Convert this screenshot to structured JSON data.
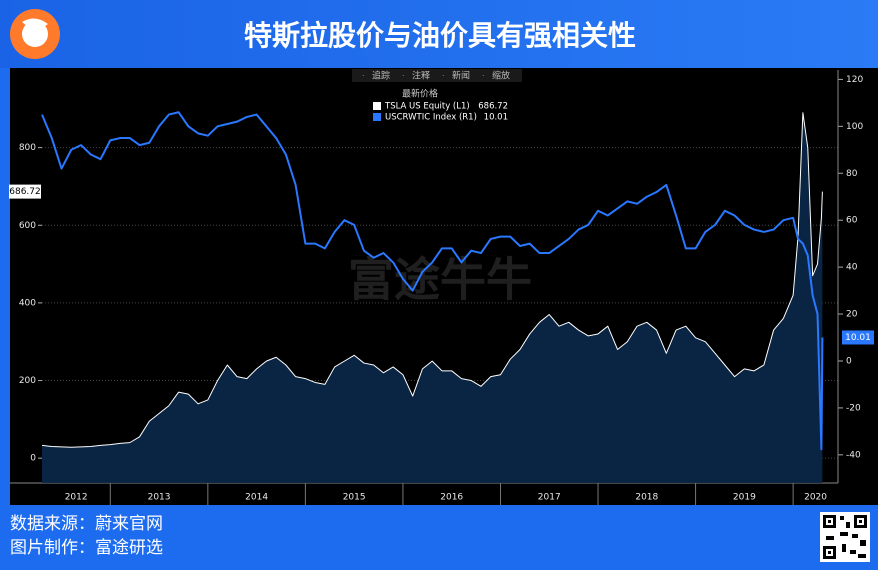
{
  "header": {
    "title": "特斯拉股价与油价具有强相关性"
  },
  "footer": {
    "source": "数据来源：蔚来官网",
    "maker": "图片制作：富途研选"
  },
  "watermark": "富途牛牛",
  "toolbar": [
    "追踪",
    "注释",
    "新闻",
    "缩放"
  ],
  "chart_data": {
    "type": "line",
    "legend_title": "最新价格",
    "x": [
      2012.3,
      2012.4,
      2012.5,
      2012.6,
      2012.7,
      2012.8,
      2012.9,
      2013.0,
      2013.1,
      2013.2,
      2013.3,
      2013.4,
      2013.5,
      2013.6,
      2013.7,
      2013.8,
      2013.9,
      2014.0,
      2014.1,
      2014.2,
      2014.3,
      2014.4,
      2014.5,
      2014.6,
      2014.7,
      2014.8,
      2014.9,
      2015.0,
      2015.1,
      2015.2,
      2015.3,
      2015.4,
      2015.5,
      2015.6,
      2015.7,
      2015.8,
      2015.9,
      2016.0,
      2016.1,
      2016.2,
      2016.3,
      2016.4,
      2016.5,
      2016.6,
      2016.7,
      2016.8,
      2016.9,
      2017.0,
      2017.1,
      2017.2,
      2017.3,
      2017.4,
      2017.5,
      2017.6,
      2017.7,
      2017.8,
      2017.9,
      2018.0,
      2018.1,
      2018.2,
      2018.3,
      2018.4,
      2018.5,
      2018.6,
      2018.7,
      2018.8,
      2018.9,
      2019.0,
      2019.1,
      2019.2,
      2019.3,
      2019.4,
      2019.5,
      2019.6,
      2019.7,
      2019.8,
      2019.9,
      2020.0,
      2020.05,
      2020.1,
      2020.15,
      2020.2,
      2020.25,
      2020.29,
      2020.3
    ],
    "series": [
      {
        "name": "TSLA US Equity  (L1)",
        "color": "#ffffff",
        "area_color": "#0b2747",
        "axis": "y",
        "values": [
          33,
          30,
          29,
          28,
          29,
          30,
          33,
          35,
          38,
          40,
          55,
          95,
          115,
          135,
          170,
          165,
          140,
          150,
          200,
          240,
          210,
          205,
          230,
          250,
          260,
          240,
          210,
          205,
          195,
          190,
          235,
          250,
          265,
          245,
          240,
          220,
          235,
          215,
          160,
          230,
          250,
          225,
          225,
          205,
          200,
          185,
          210,
          215,
          255,
          280,
          320,
          350,
          370,
          340,
          350,
          330,
          315,
          320,
          340,
          280,
          300,
          340,
          350,
          330,
          270,
          330,
          340,
          310,
          300,
          270,
          240,
          210,
          230,
          225,
          240,
          330,
          360,
          420,
          570,
          890,
          800,
          470,
          500,
          620,
          686.72
        ]
      },
      {
        "name": "USCRWTIC Index  (R1)",
        "color": "#2a78ff",
        "axis": "y2",
        "values": [
          105,
          95,
          82,
          90,
          92,
          88,
          86,
          94,
          95,
          95,
          92,
          93,
          100,
          105,
          106,
          100,
          97,
          96,
          100,
          101,
          102,
          104,
          105,
          100,
          95,
          88,
          75,
          50,
          50,
          48,
          55,
          60,
          58,
          47,
          44,
          46,
          42,
          35,
          30,
          38,
          42,
          48,
          48,
          42,
          47,
          46,
          52,
          53,
          53,
          49,
          50,
          46,
          46,
          49,
          52,
          56,
          58,
          64,
          62,
          65,
          68,
          67,
          70,
          72,
          75,
          62,
          48,
          48,
          55,
          58,
          64,
          62,
          58,
          56,
          55,
          56,
          60,
          61,
          52,
          50,
          45,
          28,
          20,
          -37.63,
          10.01
        ]
      }
    ],
    "xlim": [
      2012.3,
      2020.46
    ],
    "xticks": [
      {
        "value": 2012,
        "label": "2012"
      },
      {
        "value": 2013,
        "label": "2013"
      },
      {
        "value": 2014,
        "label": "2014"
      },
      {
        "value": 2015,
        "label": "2015"
      },
      {
        "value": 2016,
        "label": "2016"
      },
      {
        "value": 2017,
        "label": "2017"
      },
      {
        "value": 2018,
        "label": "2018"
      },
      {
        "value": 2019,
        "label": "2019"
      },
      {
        "value": 2020,
        "label": "2020"
      }
    ],
    "ylim": [
      -64,
      1000
    ],
    "yticks": [
      0,
      200,
      400,
      600,
      800
    ],
    "y2lim": [
      -52,
      124
    ],
    "y2ticks": [
      -40,
      -20,
      0,
      20,
      40,
      60,
      80,
      100,
      120
    ],
    "grid": true
  }
}
